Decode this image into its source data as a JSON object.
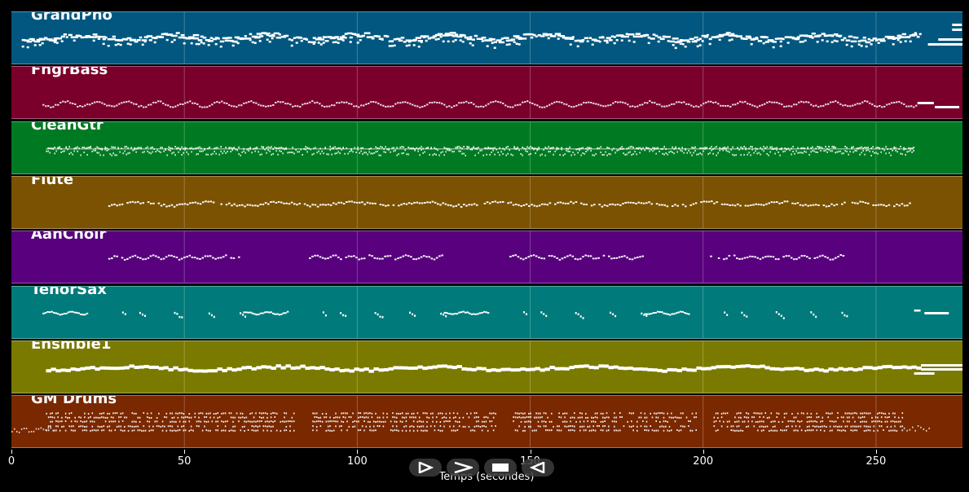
{
  "tracks": [
    {
      "name": "GrandPno",
      "color": "#01577f",
      "pattern": "dense"
    },
    {
      "name": "FngrBass",
      "color": "#7a002b",
      "pattern": "wave"
    },
    {
      "name": "CleanGtr",
      "color": "#007a22",
      "pattern": "block"
    },
    {
      "name": "Flute",
      "color": "#7a5202",
      "pattern": "melody"
    },
    {
      "name": "AahChoir",
      "color": "#58007d",
      "pattern": "phrases"
    },
    {
      "name": "TenorSax",
      "color": "#007a7a",
      "pattern": "sparse"
    },
    {
      "name": "Ensmble1",
      "color": "#7a7a00",
      "pattern": "sustain"
    },
    {
      "name": "GM Drums",
      "color": "#7a2800",
      "pattern": "drums"
    }
  ],
  "axis": {
    "label": "Temps (secondes)",
    "min": 0,
    "max": 275,
    "ticks": [
      0,
      50,
      100,
      150,
      200,
      250
    ]
  },
  "controls": [
    {
      "name": "play-icon"
    },
    {
      "name": "forward-icon"
    },
    {
      "name": "stop-icon"
    },
    {
      "name": "rewind-icon"
    }
  ]
}
